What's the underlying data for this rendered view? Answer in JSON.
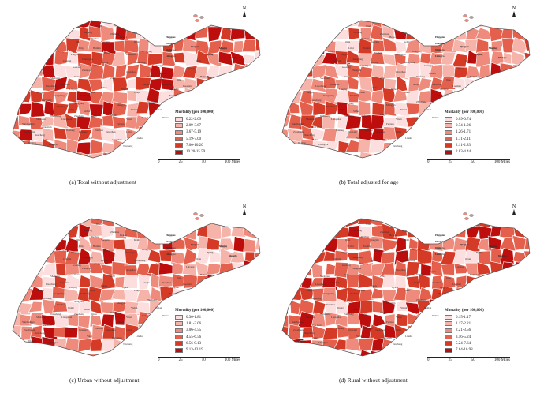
{
  "maps": [
    {
      "id": "a",
      "caption": "(a) Total without adjustment",
      "legend_title": "Mortality (per 100,000)",
      "legend": [
        "0.22-2.09",
        "2.09-3.67",
        "3.67-5.19",
        "5.19-7.00",
        "7.00-10.20",
        "10.20-15.59"
      ]
    },
    {
      "id": "b",
      "caption": "(b) Total adjusted for age",
      "legend_title": "Mortality (per 100,000)",
      "legend": [
        "0.09-0.74",
        "0.74-1.26",
        "1.26-1.71",
        "1.71-2.11",
        "2.11-2.83",
        "2.83-4.44"
      ]
    },
    {
      "id": "c",
      "caption": "(c) Urban without adjustment",
      "legend_title": "Mortality (per 100,000)",
      "legend": [
        "0.30-1.81",
        "1.81-3.06",
        "3.06-4.55",
        "4.55-6.56",
        "6.56-9.13",
        "9.13-13.19"
      ]
    },
    {
      "id": "d",
      "caption": "(d) Rural without adjustment",
      "legend_title": "Mortality (per 100,000)",
      "legend": [
        "0.15-1.17",
        "1.17-2.21",
        "2.21-3.56",
        "3.56-5.24",
        "5.24-7.64",
        "7.64-16.98"
      ]
    }
  ],
  "classes": [
    "#fcdede",
    "#f6b3aa",
    "#ef8b7c",
    "#e4604d",
    "#d53a26",
    "#bd0d0d"
  ],
  "north_label": "N",
  "scale": {
    "ticks": [
      "0",
      "25",
      "50",
      "100 Miles"
    ]
  },
  "place_labels": [
    "Changdao",
    "Changdao",
    "Changdao",
    "Changdao",
    "Penglai",
    "Muping",
    "Rushan",
    "Yantai",
    "Qixia",
    "Laiyang",
    "Haiyang",
    "Jimo",
    "Laoshan",
    "Qingdao",
    "Jiaozhou",
    "Huangdao",
    "Zhucheng",
    "Wulian",
    "Rizhao",
    "Juxian",
    "Linyi",
    "Feixian",
    "Pingyi",
    "Mengyin",
    "Yishui",
    "Yinan",
    "Tancheng",
    "Cangshan",
    "Linshu",
    "Yiyuan",
    "Linqu",
    "Weifang",
    "Gaomi",
    "Anqiu",
    "Changyi",
    "Shouguang",
    "Qingzhou",
    "Guangrao",
    "Dongying",
    "Kenli",
    "Hekou",
    "Lijin",
    "Wudi",
    "Zhanhua",
    "Yangxin",
    "Huimin",
    "Binzhou",
    "Boxing",
    "Zouping",
    "Zhangqiu",
    "Jinan",
    "Zibo",
    "Laiwu",
    "Taian",
    "Feicheng",
    "Ningyang",
    "Sishui",
    "Qufu",
    "Zoucheng",
    "Jining",
    "Yanzhou",
    "Wenshang",
    "Liangshan",
    "Jiaxiang",
    "Jinxiang",
    "Yutai",
    "Weishan",
    "Tengzhou",
    "Zaozhuang",
    "Xuecheng",
    "Heze",
    "Dingtao",
    "Chengwu",
    "Cao xian",
    "Shanxian",
    "Juye",
    "Yuncheng",
    "Juancheng",
    "Dongming",
    "Liaocheng",
    "Yanggu",
    "Shenxian",
    "Guanxian",
    "Linqing",
    "Gaotang",
    "Chiping",
    "Dong'e",
    "Pingyin",
    "Changqing",
    "Qihe",
    "Yucheng",
    "Dezhou",
    "Linyi",
    "Pingyuan",
    "Wucheng",
    "Xiajin",
    "Leling",
    "Qingyun",
    "Ningjin",
    "Shanghe",
    "Jiyang"
  ]
}
